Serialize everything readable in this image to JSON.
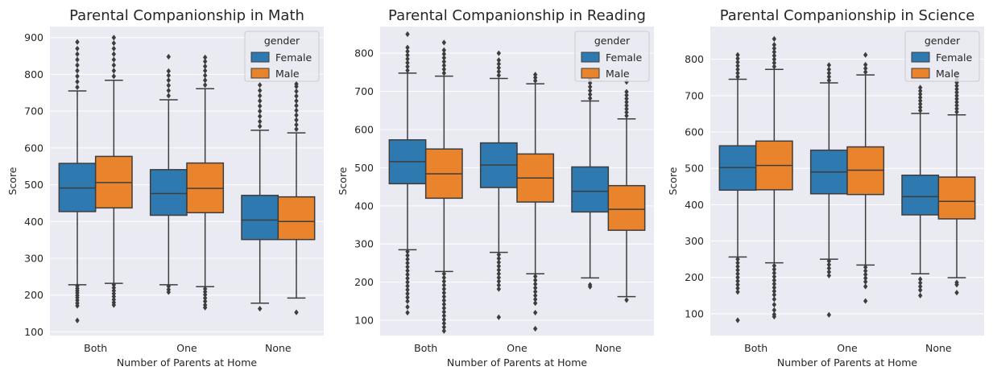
{
  "colors": {
    "female": "#2f79b1",
    "male": "#e9832c",
    "background": "#eaeaf2",
    "grid": "#ffffff",
    "edge": "#3d3d3d"
  },
  "legend": {
    "title": "gender",
    "entries": [
      "Female",
      "Male"
    ],
    "placement": "top-right"
  },
  "chart_data": [
    {
      "type": "box",
      "title": "Parental Companionship in Math",
      "xlabel": "Number of Parents at Home",
      "ylabel": "Score",
      "ylim": [
        90,
        930
      ],
      "yticks": [
        100,
        200,
        300,
        400,
        500,
        600,
        700,
        800,
        900
      ],
      "categories": [
        "Both",
        "One",
        "None"
      ],
      "grid": true,
      "series": [
        {
          "name": "Female",
          "boxes": [
            {
              "q1": 427,
              "median": 491,
              "q3": 558,
              "whislo": 228,
              "whishi": 755,
              "fliers_low": [
                225,
                218,
                212,
                206,
                199,
                193,
                186,
                178,
                171,
                131
              ],
              "fliers_high": [
                765,
                780,
                795,
                810,
                825,
                840,
                855,
                870,
                888
              ]
            },
            {
              "q1": 417,
              "median": 476,
              "q3": 541,
              "whislo": 228,
              "whishi": 731,
              "fliers_low": [
                224,
                215,
                208
              ],
              "fliers_high": [
                742,
                756,
                770,
                784,
                797,
                809,
                848
              ]
            },
            {
              "q1": 351,
              "median": 404,
              "q3": 471,
              "whislo": 178,
              "whishi": 648,
              "fliers_low": [
                163
              ],
              "fliers_high": [
                659,
                672,
                686,
                700,
                714,
                728,
                742,
                756,
                771
              ]
            }
          ]
        },
        {
          "name": "Male",
          "boxes": [
            {
              "q1": 437,
              "median": 506,
              "q3": 577,
              "whislo": 232,
              "whishi": 784,
              "fliers_low": [
                228,
                220,
                212,
                204,
                196,
                188,
                180,
                173
              ],
              "fliers_high": [
                795,
                810,
                825,
                840,
                855,
                870,
                885,
                900
              ]
            },
            {
              "q1": 424,
              "median": 490,
              "q3": 559,
              "whislo": 223,
              "whishi": 761,
              "fliers_low": [
                217,
                209,
                201,
                192,
                183,
                173,
                166
              ],
              "fliers_high": [
                771,
                784,
                797,
                810,
                822,
                835,
                846
              ]
            },
            {
              "q1": 351,
              "median": 400,
              "q3": 467,
              "whislo": 192,
              "whishi": 641,
              "fliers_low": [
                153
              ],
              "fliers_high": [
                651,
                663,
                676,
                689,
                702,
                715,
                728,
                741,
                754,
                767,
                774
              ]
            }
          ]
        }
      ]
    },
    {
      "type": "box",
      "title": "Parental Companionship in Reading",
      "xlabel": "Number of Parents at Home",
      "ylabel": "Score",
      "ylim": [
        60,
        870
      ],
      "yticks": [
        100,
        200,
        300,
        400,
        500,
        600,
        700,
        800
      ],
      "categories": [
        "Both",
        "One",
        "None"
      ],
      "grid": true,
      "series": [
        {
          "name": "Female",
          "boxes": [
            {
              "q1": 458,
              "median": 516,
              "q3": 573,
              "whislo": 285,
              "whishi": 748,
              "fliers_low": [
                280,
                270,
                260,
                250,
                240,
                230,
                220,
                210,
                200,
                190,
                180,
                170,
                160,
                150,
                135,
                120
              ],
              "fliers_high": [
                755,
                765,
                775,
                785,
                795,
                805,
                815,
                850
              ]
            },
            {
              "q1": 448,
              "median": 507,
              "q3": 565,
              "whislo": 278,
              "whishi": 734,
              "fliers_low": [
                272,
                262,
                252,
                242,
                232,
                222,
                212,
                202,
                192,
                182,
                108
              ],
              "fliers_high": [
                742,
                752,
                762,
                772,
                782,
                800
              ]
            },
            {
              "q1": 384,
              "median": 438,
              "q3": 502,
              "whislo": 211,
              "whishi": 675,
              "fliers_low": [
                193,
                188
              ],
              "fliers_high": [
                682,
                692,
                702,
                712,
                722,
                732,
                742,
                752
              ]
            }
          ]
        },
        {
          "name": "Male",
          "boxes": [
            {
              "q1": 420,
              "median": 484,
              "q3": 549,
              "whislo": 228,
              "whishi": 740,
              "fliers_low": [
                222,
                212,
                202,
                192,
                182,
                172,
                162,
                152,
                142,
                132,
                122,
                112,
                102,
                92,
                82,
                72
              ],
              "fliers_high": [
                748,
                758,
                768,
                778,
                788,
                798,
                808,
                828
              ]
            },
            {
              "q1": 410,
              "median": 473,
              "q3": 536,
              "whislo": 222,
              "whishi": 720,
              "fliers_low": [
                215,
                205,
                195,
                185,
                175,
                165,
                155,
                145,
                120,
                78
              ],
              "fliers_high": [
                728,
                736,
                744
              ]
            },
            {
              "q1": 336,
              "median": 391,
              "q3": 453,
              "whislo": 162,
              "whishi": 628,
              "fliers_low": [
                153
              ],
              "fliers_high": [
                636,
                645,
                654,
                663,
                672,
                681,
                690,
                699,
                725
              ]
            }
          ]
        }
      ]
    },
    {
      "type": "box",
      "title": "Parental Companionship in Science",
      "xlabel": "Number of Parents at Home",
      "ylabel": "Score",
      "ylim": [
        40,
        890
      ],
      "yticks": [
        100,
        200,
        300,
        400,
        500,
        600,
        700,
        800
      ],
      "categories": [
        "Both",
        "One",
        "None"
      ],
      "grid": true,
      "series": [
        {
          "name": "Female",
          "boxes": [
            {
              "q1": 440,
              "median": 502,
              "q3": 562,
              "whislo": 256,
              "whishi": 745,
              "fliers_low": [
                250,
                240,
                230,
                220,
                210,
                200,
                190,
                180,
                170,
                160,
                82
              ],
              "fliers_high": [
                752,
                762,
                772,
                782,
                792,
                802,
                812
              ]
            },
            {
              "q1": 430,
              "median": 490,
              "q3": 550,
              "whislo": 250,
              "whishi": 735,
              "fliers_low": [
                245,
                235,
                225,
                215,
                205,
                97
              ],
              "fliers_high": [
                742,
                752,
                762,
                772,
                784
              ]
            },
            {
              "q1": 372,
              "median": 422,
              "q3": 481,
              "whislo": 210,
              "whishi": 651,
              "fliers_low": [
                195,
                185,
                175,
                165,
                150
              ],
              "fliers_high": [
                659,
                668,
                677,
                686,
                695,
                704,
                713,
                722
              ]
            }
          ]
        },
        {
          "name": "Male",
          "boxes": [
            {
              "q1": 441,
              "median": 508,
              "q3": 575,
              "whislo": 240,
              "whishi": 772,
              "fliers_low": [
                232,
                222,
                212,
                202,
                192,
                182,
                172,
                162,
                152,
                140,
                125,
                110,
                98,
                92
              ],
              "fliers_high": [
                780,
                790,
                800,
                810,
                820,
                830,
                840,
                856
              ]
            },
            {
              "q1": 428,
              "median": 495,
              "q3": 559,
              "whislo": 234,
              "whishi": 757,
              "fliers_low": [
                228,
                218,
                208,
                198,
                188,
                175,
                135
              ],
              "fliers_high": [
                765,
                775,
                785,
                812
              ]
            },
            {
              "q1": 361,
              "median": 409,
              "q3": 476,
              "whislo": 199,
              "whishi": 647,
              "fliers_low": [
                186,
                180,
                158
              ],
              "fliers_high": [
                655,
                664,
                673,
                682,
                691,
                700,
                709,
                718,
                727,
                736,
                745,
                760
              ]
            }
          ]
        }
      ]
    }
  ]
}
